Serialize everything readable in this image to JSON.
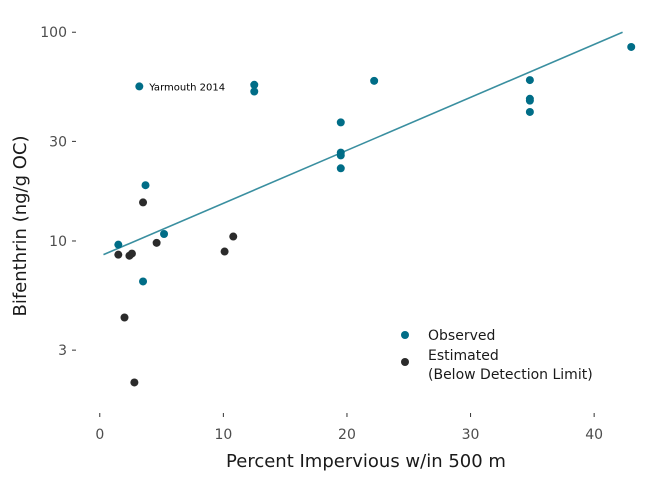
{
  "chart_data": {
    "type": "scatter",
    "title": "",
    "xlabel": "Percent Impervious w/in 500 m",
    "ylabel": "Bifenthrin (ng/g OC)",
    "x_scale": "linear",
    "y_scale": "log10",
    "xlim": [
      -1.6,
      44.6
    ],
    "ylim": [
      1.55,
      125
    ],
    "x_ticks": [
      0,
      10,
      20,
      30,
      40
    ],
    "x_tick_labels": [
      "0",
      "10",
      "20",
      "30",
      "40"
    ],
    "y_ticks": [
      3,
      10,
      30,
      100
    ],
    "y_tick_labels": [
      "3",
      "10",
      "30",
      "100"
    ],
    "grid": false,
    "legend_position": "bottom-right",
    "colors": {
      "observed": "#006d87",
      "estimated": "#2b2b2b",
      "trend": "#3a8fa0"
    },
    "series": [
      {
        "name": "Observed",
        "color": "#006d87",
        "points": [
          {
            "x": 1.5,
            "y": 9.6
          },
          {
            "x": 3.2,
            "y": 55
          },
          {
            "x": 3.5,
            "y": 6.4
          },
          {
            "x": 3.7,
            "y": 18.5
          },
          {
            "x": 5.2,
            "y": 10.8
          },
          {
            "x": 12.5,
            "y": 56
          },
          {
            "x": 12.5,
            "y": 52
          },
          {
            "x": 19.5,
            "y": 37
          },
          {
            "x": 19.5,
            "y": 26.5
          },
          {
            "x": 19.5,
            "y": 25.7
          },
          {
            "x": 19.5,
            "y": 22.3
          },
          {
            "x": 22.2,
            "y": 58.5
          },
          {
            "x": 34.8,
            "y": 59
          },
          {
            "x": 34.8,
            "y": 48
          },
          {
            "x": 34.8,
            "y": 47
          },
          {
            "x": 34.8,
            "y": 41.5
          },
          {
            "x": 43.0,
            "y": 85
          }
        ]
      },
      {
        "name": "Estimated\n(Below Detection Limit)",
        "color": "#2b2b2b",
        "points": [
          {
            "x": 1.5,
            "y": 8.6
          },
          {
            "x": 2.0,
            "y": 4.3
          },
          {
            "x": 2.4,
            "y": 8.5
          },
          {
            "x": 2.6,
            "y": 8.7
          },
          {
            "x": 2.8,
            "y": 2.1
          },
          {
            "x": 3.5,
            "y": 15.3
          },
          {
            "x": 4.6,
            "y": 9.8
          },
          {
            "x": 10.1,
            "y": 8.9
          },
          {
            "x": 10.8,
            "y": 10.5
          }
        ]
      }
    ],
    "trend_line": {
      "x": [
        0.3,
        42.3
      ],
      "y": [
        8.6,
        100
      ]
    },
    "annotations": [
      {
        "text": "Yarmouth 2014",
        "x": 4.0,
        "y": 55
      }
    ],
    "legend": {
      "entries": [
        {
          "label_lines": [
            "Observed"
          ],
          "color": "#006d87"
        },
        {
          "label_lines": [
            "Estimated",
            "(Below Detection Limit)"
          ],
          "color": "#2b2b2b"
        }
      ]
    }
  }
}
